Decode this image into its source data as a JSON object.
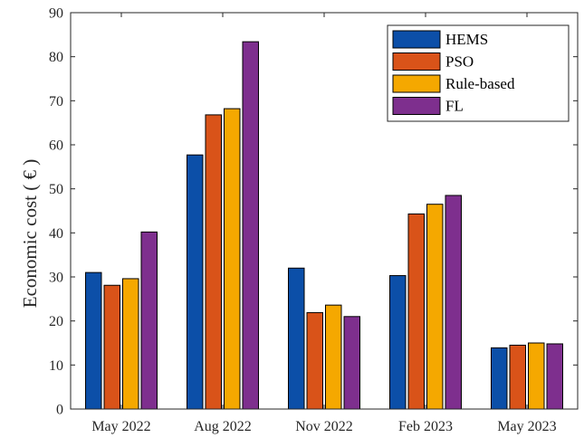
{
  "chart_data": {
    "type": "bar",
    "categories": [
      "May 2022",
      "Aug 2022",
      "Nov 2022",
      "Feb 2023",
      "May 2023"
    ],
    "series": [
      {
        "name": "HEMS",
        "color": "#0C4FA8",
        "values": [
          31.0,
          57.7,
          32.0,
          30.3,
          13.9
        ]
      },
      {
        "name": "PSO",
        "color": "#D95319",
        "values": [
          28.1,
          66.8,
          21.9,
          44.3,
          14.5
        ]
      },
      {
        "name": "Rule-based",
        "color": "#F5A800",
        "values": [
          29.6,
          68.2,
          23.6,
          46.5,
          15.0
        ]
      },
      {
        "name": "FL",
        "color": "#7E2F8E",
        "values": [
          40.2,
          83.4,
          21.0,
          48.5,
          14.8
        ]
      }
    ],
    "title": "",
    "xlabel": "",
    "ylabel": "Economic cost ( € )",
    "ylim": [
      0,
      90
    ],
    "yticks": [
      0,
      10,
      20,
      30,
      40,
      50,
      60,
      70,
      80,
      90
    ],
    "grid": false,
    "legend_position": "top-right"
  }
}
